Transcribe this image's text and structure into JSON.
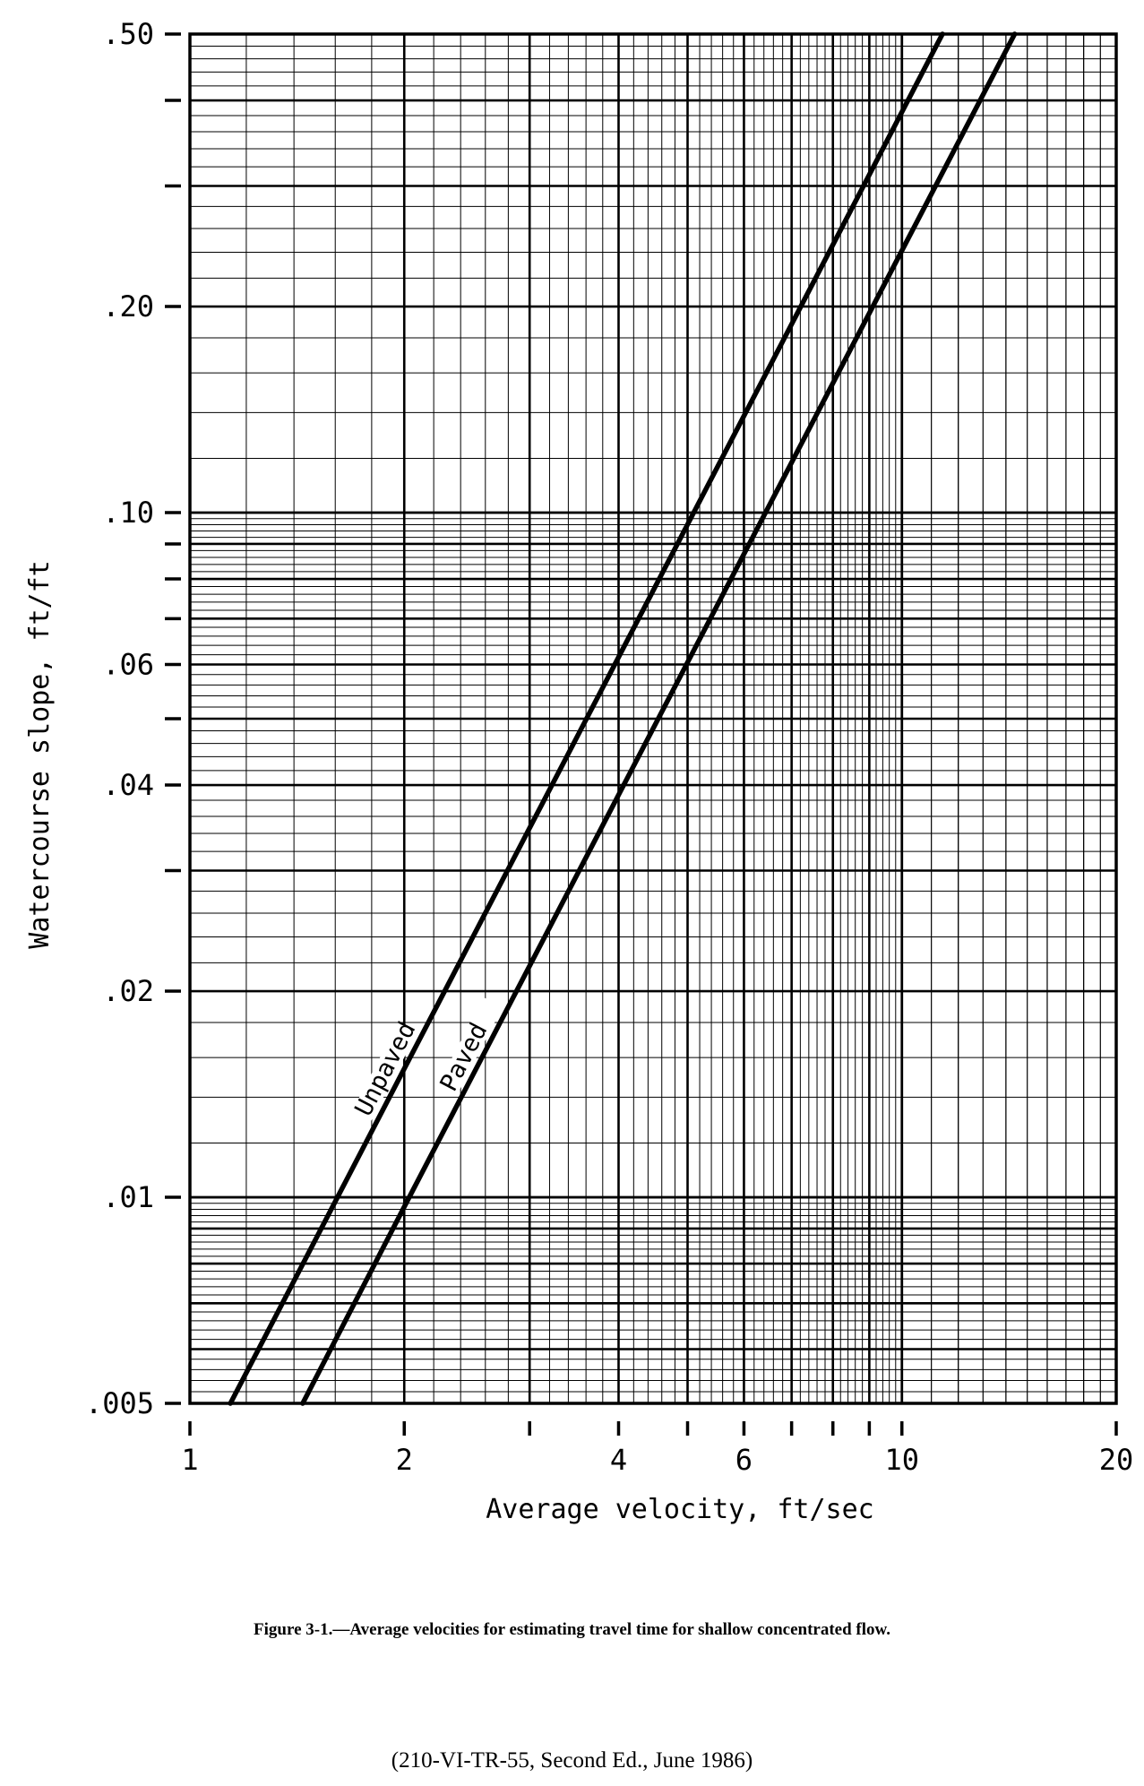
{
  "chart_data": {
    "type": "line",
    "xscale": "log",
    "yscale": "log",
    "xlim": [
      1,
      20
    ],
    "ylim": [
      0.005,
      0.5
    ],
    "xlabel": "Average velocity, ft/sec",
    "ylabel": "Watercourse slope, ft/ft",
    "x_tick_labels": [
      {
        "value": 1,
        "label": "1"
      },
      {
        "value": 2,
        "label": "2"
      },
      {
        "value": 4,
        "label": "4"
      },
      {
        "value": 6,
        "label": "6"
      },
      {
        "value": 10,
        "label": "10"
      },
      {
        "value": 20,
        "label": "20"
      }
    ],
    "x_tick_marks": [
      1,
      2,
      3,
      4,
      5,
      6,
      7,
      8,
      9,
      10,
      20
    ],
    "y_tick_labels": [
      {
        "value": 0.5,
        "label": ".50"
      },
      {
        "value": 0.2,
        "label": ".20"
      },
      {
        "value": 0.1,
        "label": ".10"
      },
      {
        "value": 0.06,
        "label": ".06"
      },
      {
        "value": 0.04,
        "label": ".04"
      },
      {
        "value": 0.02,
        "label": ".02"
      },
      {
        "value": 0.01,
        "label": ".01"
      },
      {
        "value": 0.005,
        "label": ".005"
      }
    ],
    "y_tick_marks": [
      0.5,
      0.4,
      0.3,
      0.2,
      0.1,
      0.09,
      0.08,
      0.07,
      0.06,
      0.05,
      0.04,
      0.03,
      0.02,
      0.01,
      0.005
    ],
    "grid": true,
    "series": [
      {
        "name": "Unpaved",
        "x": [
          1.14,
          2.0,
          4.0,
          11.4
        ],
        "y": [
          0.005,
          0.0154,
          0.0615,
          0.5
        ]
      },
      {
        "name": "Paved",
        "x": [
          1.44,
          2.0,
          4.0,
          14.4
        ],
        "y": [
          0.005,
          0.00968,
          0.0387,
          0.5
        ]
      }
    ]
  },
  "caption": "Figure 3-1.—Average velocities for estimating travel time for shallow concentrated flow.",
  "source": "(210-VI-TR-55, Second Ed., June 1986)"
}
